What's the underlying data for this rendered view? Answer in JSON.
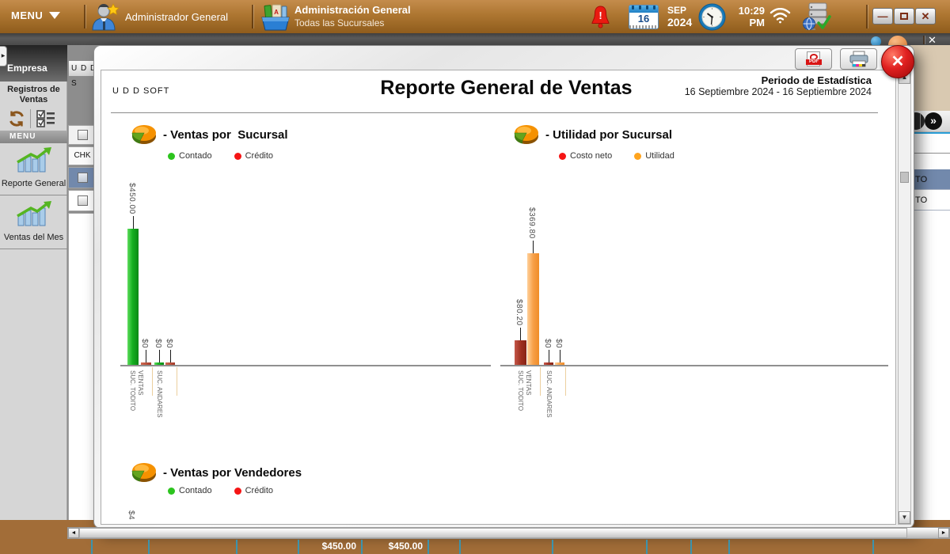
{
  "topbar": {
    "menu": "MENU",
    "user": "Administrador General",
    "app_title": "Administración General",
    "app_subtitle": "Todas las Sucursales",
    "day": "16",
    "month": "SEP",
    "year": "2024",
    "time": "10:29",
    "ampm": "PM",
    "minimize_glyph": "—",
    "close_glyph": "✕",
    "subbar_close_glyph": "✕"
  },
  "sidebar": {
    "panel_tab": "Empresa",
    "company_field": "U D D S",
    "section": "Registros de Ventas",
    "menu_header": "MENU",
    "items": [
      {
        "label": "Reporte General"
      },
      {
        "label": "Ventas del Mes"
      }
    ]
  },
  "grid": {
    "chk_header": "CHK"
  },
  "modal": {
    "brand": "U D D SOFT",
    "title": "Reporte General de Ventas",
    "period_label": "Periodo de Estadística",
    "period_value": "16 Septiembre 2024 - 16 Septiembre 2024",
    "pdf_label": "PDF",
    "close_glyph": "✕"
  },
  "chart_data": [
    {
      "type": "bar",
      "title": "- Ventas por  Sucursal",
      "legend_position": "top",
      "categories": [
        [
          "SUC. TODITO",
          "VENTAS"
        ],
        [
          "SUC. ANDARES"
        ]
      ],
      "series": [
        {
          "name": "Contado",
          "color": "#2cc41e",
          "color_key": "green",
          "values": [
            450.0,
            0
          ],
          "labels": [
            "$450.00",
            "$0"
          ]
        },
        {
          "name": "Crédito",
          "color": "#f51414",
          "color_key": "red",
          "values": [
            0,
            0
          ],
          "labels": [
            "$0",
            "$0"
          ]
        }
      ],
      "ylim": [
        0,
        450
      ]
    },
    {
      "type": "bar",
      "title": "- Utilidad por Sucursal",
      "legend_position": "top",
      "categories": [
        [
          "SUC. TODITO",
          "VENTAS"
        ],
        [
          "SUC. ANDARES"
        ]
      ],
      "series": [
        {
          "name": "Costo neto",
          "color": "#f51414",
          "color_key": "darkred",
          "values": [
            80.2,
            0
          ],
          "labels": [
            "$80.20",
            "$0"
          ]
        },
        {
          "name": "Utilidad",
          "color": "#ffa41e",
          "color_key": "orange",
          "values": [
            369.8,
            0
          ],
          "labels": [
            "$369.80",
            "$0"
          ]
        }
      ],
      "ylim": [
        0,
        450
      ]
    },
    {
      "type": "bar",
      "title": "- Ventas por Vendedores",
      "legend_position": "top",
      "series": [
        {
          "name": "Contado",
          "color": "#2cc41e",
          "color_key": "green"
        },
        {
          "name": "Crédito",
          "color": "#f51414",
          "color_key": "red"
        }
      ],
      "partial_value_label": "$4"
    }
  ],
  "right_panel": {
    "rows": [
      "ITO",
      "ITO"
    ]
  },
  "footer": {
    "cells": [
      "",
      "",
      "",
      "",
      "$450.00",
      "$450.00",
      "",
      "",
      "",
      "",
      "",
      "",
      ""
    ]
  },
  "colors": {
    "topbar_brown": "#ad7631",
    "footer_brown": "#a26d38",
    "footer_divider": "#3b93ad",
    "row_highlight": "#7289ac"
  }
}
